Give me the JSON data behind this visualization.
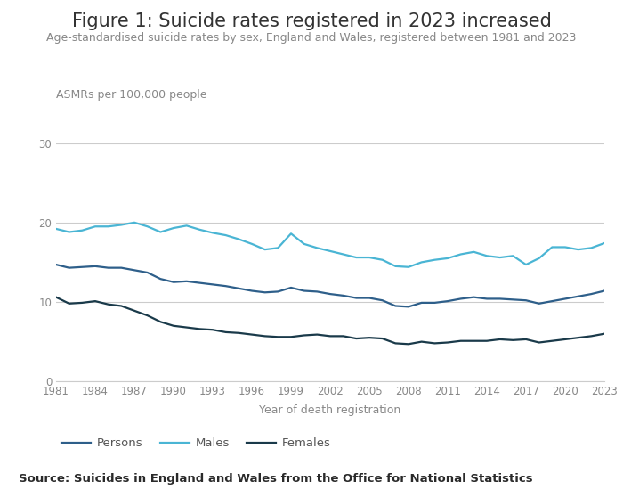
{
  "title": "Figure 1: Suicide rates registered in 2023 increased",
  "subtitle": "Age-standardised suicide rates by sex, England and Wales, registered between 1981 and 2023",
  "ylabel": "ASMRs per 100,000 people",
  "xlabel": "Year of death registration",
  "source": "Source: Suicides in England and Wales from the Office for National Statistics",
  "years": [
    1981,
    1982,
    1983,
    1984,
    1985,
    1986,
    1987,
    1988,
    1989,
    1990,
    1991,
    1992,
    1993,
    1994,
    1995,
    1996,
    1997,
    1998,
    1999,
    2000,
    2001,
    2002,
    2003,
    2004,
    2005,
    2006,
    2007,
    2008,
    2009,
    2010,
    2011,
    2012,
    2013,
    2014,
    2015,
    2016,
    2017,
    2018,
    2019,
    2020,
    2021,
    2022,
    2023
  ],
  "persons": [
    14.7,
    14.3,
    14.4,
    14.5,
    14.3,
    14.3,
    14.0,
    13.7,
    12.9,
    12.5,
    12.6,
    12.4,
    12.2,
    12.0,
    11.7,
    11.4,
    11.2,
    11.3,
    11.8,
    11.4,
    11.3,
    11.0,
    10.8,
    10.5,
    10.5,
    10.2,
    9.5,
    9.4,
    9.9,
    9.9,
    10.1,
    10.4,
    10.6,
    10.4,
    10.4,
    10.3,
    10.2,
    9.8,
    10.1,
    10.4,
    10.7,
    11.0,
    11.4
  ],
  "males": [
    19.2,
    18.8,
    19.0,
    19.5,
    19.5,
    19.7,
    20.0,
    19.5,
    18.8,
    19.3,
    19.6,
    19.1,
    18.7,
    18.4,
    17.9,
    17.3,
    16.6,
    16.8,
    18.6,
    17.3,
    16.8,
    16.4,
    16.0,
    15.6,
    15.6,
    15.3,
    14.5,
    14.4,
    15.0,
    15.3,
    15.5,
    16.0,
    16.3,
    15.8,
    15.6,
    15.8,
    14.7,
    15.5,
    16.9,
    16.9,
    16.6,
    16.8,
    17.4
  ],
  "females": [
    10.6,
    9.8,
    9.9,
    10.1,
    9.7,
    9.5,
    8.9,
    8.3,
    7.5,
    7.0,
    6.8,
    6.6,
    6.5,
    6.2,
    6.1,
    5.9,
    5.7,
    5.6,
    5.6,
    5.8,
    5.9,
    5.7,
    5.7,
    5.4,
    5.5,
    5.4,
    4.8,
    4.7,
    5.0,
    4.8,
    4.9,
    5.1,
    5.1,
    5.1,
    5.3,
    5.2,
    5.3,
    4.9,
    5.1,
    5.3,
    5.5,
    5.7,
    6.0
  ],
  "persons_color": "#2e5f8a",
  "males_color": "#4ab5d4",
  "females_color": "#1a3a4a",
  "ylim": [
    0,
    32
  ],
  "yticks": [
    0,
    10,
    20,
    30
  ],
  "xticks": [
    1981,
    1984,
    1987,
    1990,
    1993,
    1996,
    1999,
    2002,
    2005,
    2008,
    2011,
    2014,
    2017,
    2020,
    2023
  ],
  "background_color": "#ffffff",
  "grid_color": "#cccccc",
  "title_fontsize": 15,
  "subtitle_fontsize": 9,
  "axis_label_fontsize": 9,
  "tick_fontsize": 8.5,
  "legend_fontsize": 9.5,
  "source_fontsize": 9.5,
  "line_width": 1.6
}
